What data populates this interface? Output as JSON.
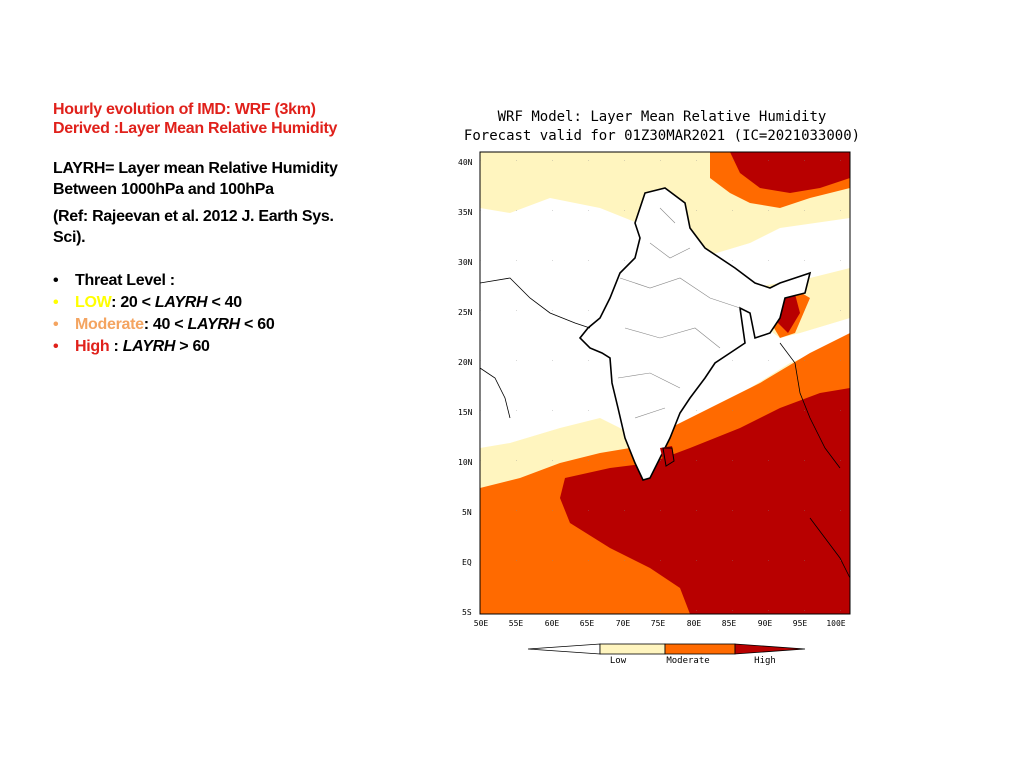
{
  "left": {
    "title_line1": "Hourly evolution of IMD: WRF (3km)",
    "title_line2": "Derived :Layer Mean Relative Humidity",
    "def_line1": "LAYRH= Layer mean Relative Humidity",
    "def_line2": "Between 1000hPa and 100hPa",
    "ref_line1": "(Ref: Rajeevan  et al. 2012 J. Earth Sys.",
    "ref_line2": "Sci).",
    "threat_heading": "Threat Level :",
    "levels": [
      {
        "name": "LOW",
        "sep": ": ",
        "range_a": "20 < ",
        "var": "LAYRH",
        "range_b": " <  40",
        "color": "#ffff00"
      },
      {
        "name": "Moderate",
        "sep": ": ",
        "range_a": "40 < ",
        "var": "LAYRH",
        "range_b": " < 60",
        "color": "#f4a460"
      },
      {
        "name": "High",
        "sep": " : ",
        "range_a": "",
        "var": "LAYRH",
        "range_b": " > 60",
        "color": "#e0211b"
      }
    ]
  },
  "map": {
    "title_line1": "WRF Model: Layer Mean Relative Humidity",
    "title_line2": "Forecast valid for 01Z30MAR2021 (IC=2021033000)",
    "lat_labels": [
      "40N",
      "35N",
      "30N",
      "25N",
      "20N",
      "15N",
      "10N",
      "5N",
      "EQ",
      "5S"
    ],
    "lon_labels": [
      "50E",
      "55E",
      "60E",
      "65E",
      "70E",
      "75E",
      "80E",
      "85E",
      "90E",
      "95E",
      "100E"
    ],
    "legend": {
      "labels": [
        "Low",
        "Moderate",
        "High"
      ],
      "colors": {
        "dry": "#ffffff",
        "low": "#fff5bf",
        "moderate": "#ff6a00",
        "high": "#b80000"
      }
    }
  }
}
